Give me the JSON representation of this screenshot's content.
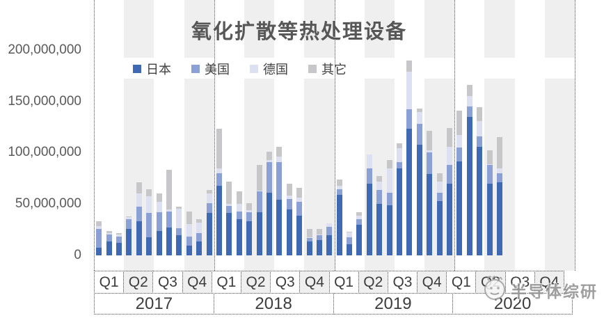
{
  "title": "氧化扩散等热处理设备",
  "watermark": {
    "text": "半导体综研"
  },
  "legend": {
    "items": [
      {
        "key": "japan",
        "label": "日本",
        "color": "#4069b4"
      },
      {
        "key": "usa",
        "label": "美国",
        "color": "#8ba1d6"
      },
      {
        "key": "germany",
        "label": "德国",
        "color": "#dce0f0"
      },
      {
        "key": "other",
        "label": "其它",
        "color": "#c7c7c9"
      }
    ]
  },
  "chart_data": {
    "type": "bar",
    "stacked": true,
    "title": "氧化扩散等热处理设备",
    "xlabel": "",
    "ylabel": "",
    "ylim": [
      0,
      200000000
    ],
    "grid": false,
    "legend_position": "top",
    "background_bands": "even quarters shaded light gray",
    "y_ticks": [
      0,
      50000000,
      100000000,
      150000000,
      200000000
    ],
    "y_tick_labels": [
      "0",
      "50,000,000",
      "100,000,000",
      "150,000,000",
      "200,000,000"
    ],
    "years": [
      "2017",
      "2018",
      "2019",
      "2020"
    ],
    "quarter_labels": [
      "Q1",
      "Q2",
      "Q3",
      "Q4"
    ],
    "series": [
      {
        "name": "日本",
        "key": "japan",
        "color": "#4069b4"
      },
      {
        "name": "美国",
        "key": "usa",
        "color": "#8ba1d6"
      },
      {
        "name": "德国",
        "key": "germany",
        "color": "#dce0f0"
      },
      {
        "name": "其它",
        "key": "other",
        "color": "#c7c7c9"
      }
    ],
    "value_unit": 1000000,
    "months": [
      "2017-01",
      "2017-02",
      "2017-03",
      "2017-04",
      "2017-05",
      "2017-06",
      "2017-07",
      "2017-08",
      "2017-09",
      "2017-10",
      "2017-11",
      "2017-12",
      "2018-01",
      "2018-02",
      "2018-03",
      "2018-04",
      "2018-05",
      "2018-06",
      "2018-07",
      "2018-08",
      "2018-09",
      "2018-10",
      "2018-11",
      "2018-12",
      "2019-01",
      "2019-02",
      "2019-03",
      "2019-04",
      "2019-05",
      "2019-06",
      "2019-07",
      "2019-08",
      "2019-09",
      "2019-10",
      "2019-11",
      "2019-12",
      "2020-01",
      "2020-02",
      "2020-03",
      "2020-04",
      "2020-05"
    ],
    "values_millions": [
      [
        7.5,
        18.5,
        2.5,
        4.5
      ],
      [
        13.5,
        7,
        1.5,
        1.5
      ],
      [
        12.5,
        5.5,
        2,
        1.5
      ],
      [
        26,
        9.5,
        1.5,
        1
      ],
      [
        33,
        14.5,
        12.5,
        11
      ],
      [
        17.5,
        23.5,
        16.5,
        7
      ],
      [
        24,
        18,
        10,
        8
      ],
      [
        27,
        16,
        2,
        38
      ],
      [
        19.5,
        7,
        19,
        2
      ],
      [
        9.5,
        9,
        12,
        12.5
      ],
      [
        13.5,
        8,
        10,
        3.5
      ],
      [
        41,
        10,
        9,
        3.5
      ],
      [
        68,
        12,
        5,
        38
      ],
      [
        41,
        7,
        2,
        22
      ],
      [
        35,
        8,
        7,
        12
      ],
      [
        33,
        9,
        2,
        7
      ],
      [
        42,
        20,
        1,
        25
      ],
      [
        61,
        30,
        1.5,
        8.5
      ],
      [
        54,
        37,
        5.5,
        9
      ],
      [
        45,
        10,
        3.5,
        11.5
      ],
      [
        38.5,
        13.5,
        4.5,
        9
      ],
      [
        13.5,
        3.5,
        0.5,
        8
      ],
      [
        15,
        4.5,
        0.5,
        6
      ],
      [
        19.5,
        8,
        4,
        0
      ],
      [
        59,
        5.5,
        3.5,
        6
      ],
      [
        11,
        6.5,
        5,
        0.5
      ],
      [
        29.5,
        5.5,
        3.5,
        3.5
      ],
      [
        70,
        15,
        13,
        0
      ],
      [
        50,
        13.5,
        8,
        5.5
      ],
      [
        49,
        12,
        24,
        8
      ],
      [
        85,
        5.5,
        14,
        4.5
      ],
      [
        123,
        19,
        37,
        11
      ],
      [
        108,
        20,
        11.5,
        3.5
      ],
      [
        79,
        21.5,
        2,
        18.5
      ],
      [
        53,
        8,
        11,
        8
      ],
      [
        70,
        18,
        18,
        18
      ],
      [
        91.5,
        13.5,
        12.5,
        23.5
      ],
      [
        135,
        10,
        10,
        11
      ],
      [
        106,
        10,
        15,
        13
      ],
      [
        70,
        18,
        1,
        13
      ],
      [
        71,
        9,
        5,
        30
      ]
    ]
  }
}
